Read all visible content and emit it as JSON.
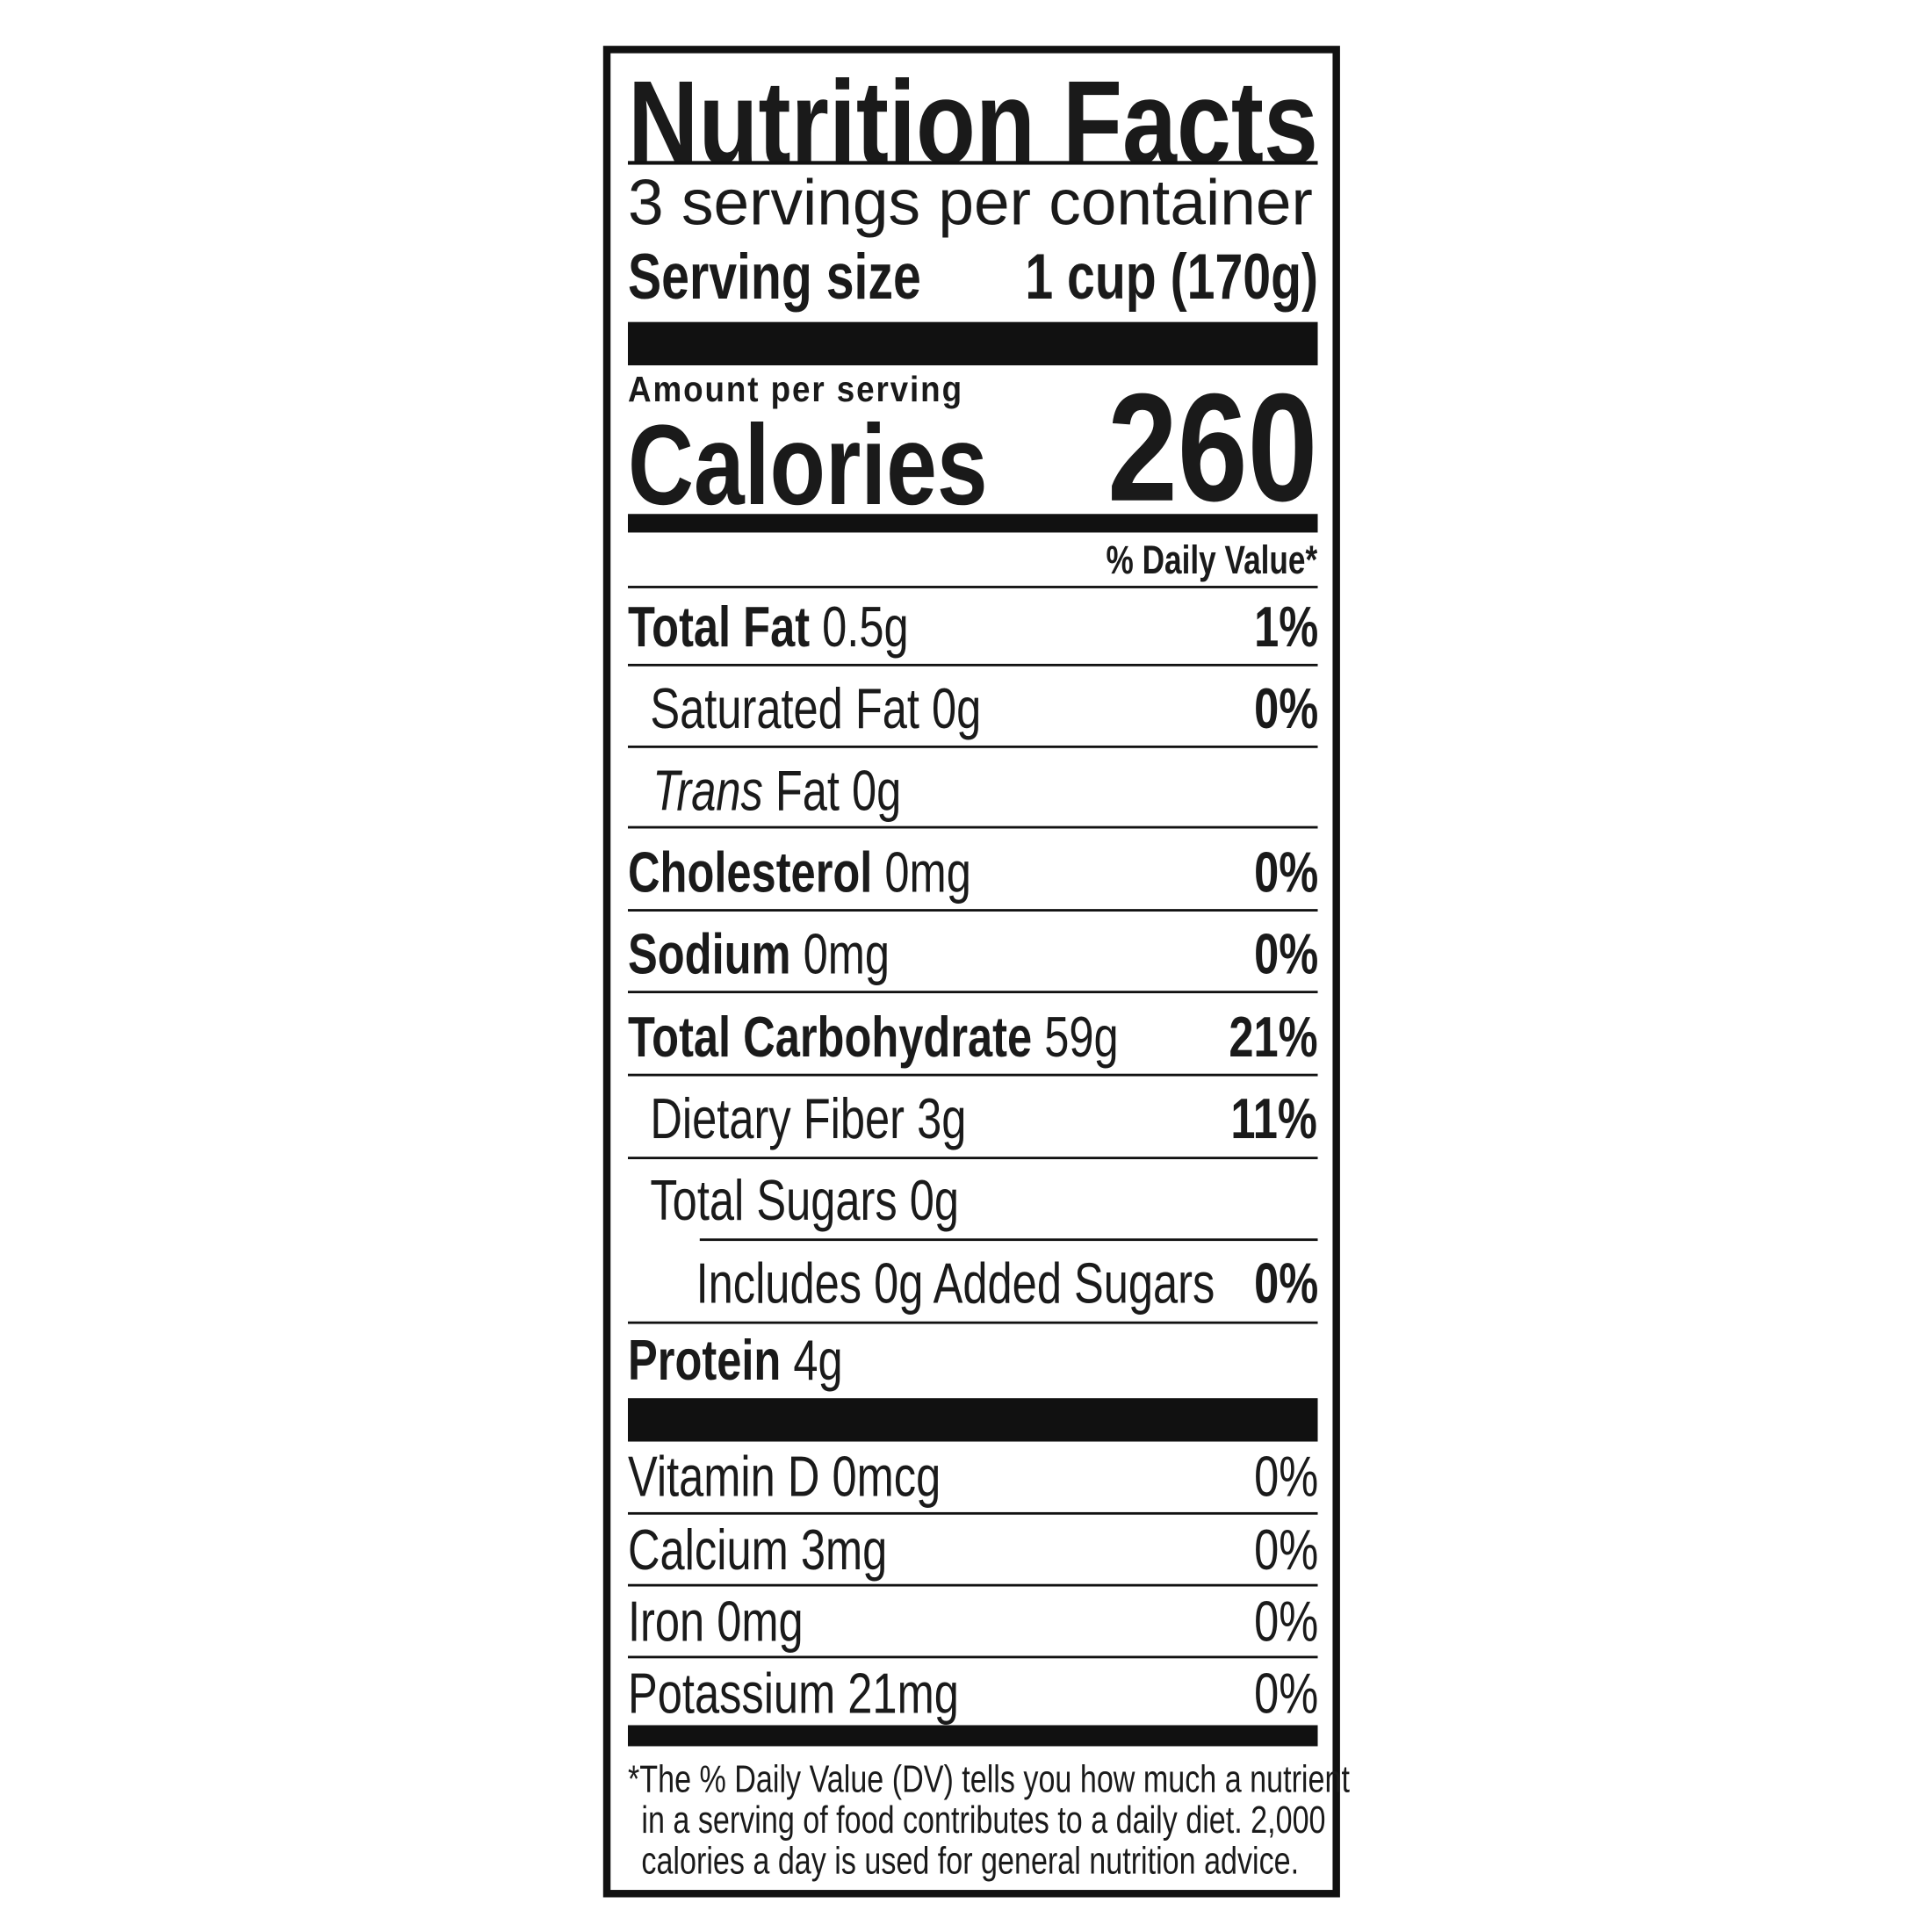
{
  "title": "Nutrition Facts",
  "servings_per_container": "3 servings per container",
  "serving_size": {
    "label": "Serving size",
    "value": "1 cup (170g)"
  },
  "amount_per_serving": "Amount per serving",
  "calories": {
    "label": "Calories",
    "value": "260"
  },
  "daily_value_header": "% Daily Value*",
  "nutrients": [
    {
      "name": "Total Fat",
      "amount": "0.5g",
      "dv": "1%"
    },
    {
      "name": "Saturated Fat",
      "amount": "0g",
      "dv": "0%"
    },
    {
      "name_italic": "Trans",
      "name": "Fat",
      "amount": "0g",
      "dv": ""
    },
    {
      "name": "Cholesterol",
      "amount": "0mg",
      "dv": "0%"
    },
    {
      "name": "Sodium",
      "amount": "0mg",
      "dv": "0%"
    },
    {
      "name": "Total Carbohydrate",
      "amount": "59g",
      "dv": "21%"
    },
    {
      "name": "Dietary Fiber",
      "amount": "3g",
      "dv": "11%"
    },
    {
      "name": "Total Sugars",
      "amount": "0g",
      "dv": ""
    },
    {
      "name": "Includes 0g Added Sugars",
      "amount": "",
      "dv": "0%"
    },
    {
      "name": "Protein",
      "amount": "4g",
      "dv": ""
    }
  ],
  "vitamins": [
    {
      "name": "Vitamin D 0mcg",
      "dv": "0%"
    },
    {
      "name": "Calcium 3mg",
      "dv": "0%"
    },
    {
      "name": "Iron 0mg",
      "dv": "0%"
    },
    {
      "name": "Potassium 21mg",
      "dv": "0%"
    }
  ],
  "footnote": [
    "*The % Daily Value (DV) tells you how much a nutrient",
    "in a serving of food contributes to a daily diet. 2,000",
    "calories a day is used for general nutrition advice."
  ]
}
